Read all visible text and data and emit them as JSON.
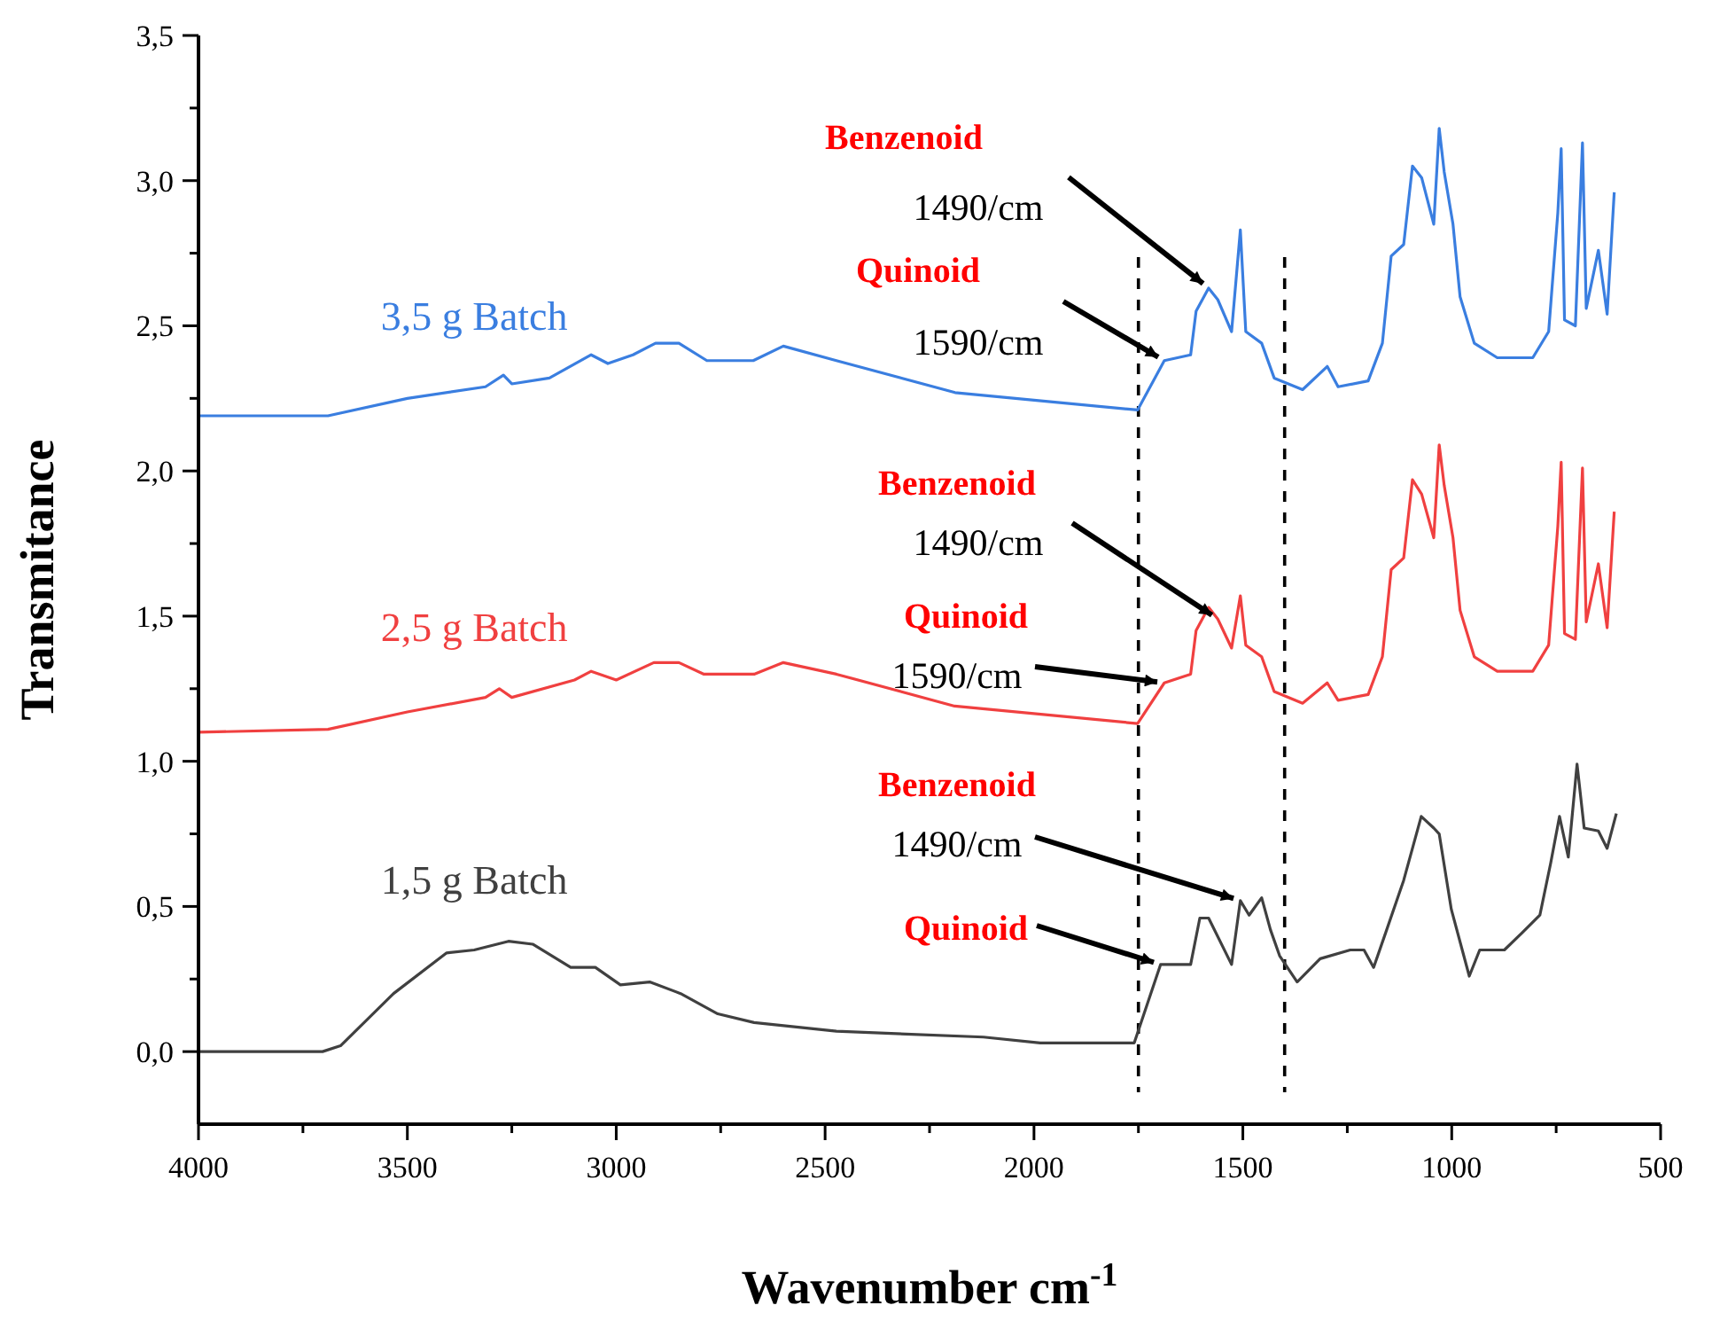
{
  "chart_data": {
    "type": "line",
    "xlabel": "Wavenumber cm$^{-1}$",
    "ylabel": "Transmitance",
    "xlim": [
      4000,
      500
    ],
    "xticks": [
      4000,
      {
        "value": 3750,
        "label": null
      },
      3500,
      {
        "value": 3250,
        "label": null
      },
      3000,
      {
        "value": 2750,
        "label": null
      },
      2500,
      {
        "value": 2250,
        "label": null
      },
      2000,
      {
        "value": 1750,
        "label": null
      },
      1500,
      {
        "value": 1250,
        "label": null
      },
      1000,
      {
        "value": 750,
        "label": null
      },
      500
    ],
    "ylim": [
      -0.25,
      3.5
    ],
    "yticks": [
      {
        "value": 0,
        "label": "0,0"
      },
      {
        "value": 0.25,
        "label": null
      },
      {
        "value": 0.5,
        "label": "0,5"
      },
      {
        "value": 0.75,
        "label": null
      },
      {
        "value": 1,
        "label": "1,0"
      },
      {
        "value": 1.25,
        "label": null
      },
      {
        "value": 1.5,
        "label": "1,5"
      },
      {
        "value": 1.75,
        "label": null
      },
      {
        "value": 2,
        "label": "2,0"
      },
      {
        "value": 2.25,
        "label": null
      },
      {
        "value": 2.5,
        "label": "2,5"
      },
      {
        "value": 2.75,
        "label": null
      },
      {
        "value": 3,
        "label": "3,0"
      },
      {
        "value": 3.25,
        "label": null
      },
      {
        "value": 3.5,
        "label": "3,5"
      }
    ],
    "grid": false,
    "marker": "none",
    "line_style": "solid",
    "series": [
      {
        "name": "3,5 g Batch",
        "color": "#3a7ee0",
        "x": [
          4000,
          3690,
          3500,
          3313,
          3270,
          3250,
          3160,
          3060,
          3020,
          2960,
          2906,
          2850,
          2783,
          2672,
          2600,
          2473,
          2189,
          1752,
          1688,
          1625,
          1612,
          1582,
          1560,
          1527,
          1506,
          1493,
          1455,
          1425,
          1357,
          1298,
          1272,
          1200,
          1166,
          1145,
          1115,
          1094,
          1072,
          1043,
          1030,
          1018,
          997,
          980,
          946,
          891,
          806,
          768,
          746,
          738,
          730,
          704,
          687,
          678,
          649,
          628,
          611
        ],
        "values": [
          2.19,
          2.19,
          2.25,
          2.29,
          2.33,
          2.3,
          2.32,
          2.4,
          2.37,
          2.4,
          2.44,
          2.44,
          2.38,
          2.38,
          2.43,
          2.38,
          2.27,
          2.21,
          2.38,
          2.4,
          2.55,
          2.63,
          2.59,
          2.48,
          2.83,
          2.48,
          2.44,
          2.32,
          2.28,
          2.36,
          2.29,
          2.31,
          2.44,
          2.74,
          2.78,
          3.05,
          3.01,
          2.85,
          3.18,
          3.03,
          2.85,
          2.6,
          2.44,
          2.39,
          2.39,
          2.48,
          2.89,
          3.11,
          2.52,
          2.5,
          3.13,
          2.56,
          2.76,
          2.54,
          2.96
        ]
      },
      {
        "name": "2,5 g Batch",
        "color": "#f04040",
        "x": [
          4000,
          3690,
          3500,
          3313,
          3280,
          3250,
          3100,
          3060,
          3000,
          2910,
          2850,
          2790,
          2670,
          2600,
          2473,
          2190,
          1752,
          1688,
          1625,
          1612,
          1582,
          1560,
          1527,
          1506,
          1493,
          1455,
          1425,
          1357,
          1298,
          1272,
          1200,
          1166,
          1145,
          1115,
          1094,
          1072,
          1043,
          1030,
          1018,
          997,
          980,
          946,
          891,
          806,
          768,
          746,
          738,
          730,
          704,
          687,
          678,
          649,
          628,
          611
        ],
        "values": [
          1.1,
          1.11,
          1.17,
          1.22,
          1.25,
          1.22,
          1.28,
          1.31,
          1.28,
          1.34,
          1.34,
          1.3,
          1.3,
          1.34,
          1.3,
          1.19,
          1.13,
          1.27,
          1.3,
          1.45,
          1.53,
          1.49,
          1.39,
          1.57,
          1.4,
          1.36,
          1.24,
          1.2,
          1.27,
          1.21,
          1.23,
          1.36,
          1.66,
          1.7,
          1.97,
          1.92,
          1.77,
          2.09,
          1.95,
          1.77,
          1.52,
          1.36,
          1.31,
          1.31,
          1.4,
          1.81,
          2.03,
          1.44,
          1.42,
          2.01,
          1.48,
          1.68,
          1.46,
          1.86
        ]
      },
      {
        "name": "1,5 g Batch",
        "color": "#404040",
        "x": [
          4000,
          3703,
          3660,
          3533,
          3406,
          3340,
          3258,
          3200,
          3109,
          3050,
          2990,
          2920,
          2846,
          2757,
          2670,
          2473,
          2121,
          1985,
          1760,
          1697,
          1625,
          1603,
          1582,
          1527,
          1506,
          1485,
          1455,
          1434,
          1412,
          1370,
          1315,
          1243,
          1210,
          1187,
          1158,
          1115,
          1073,
          1043,
          1030,
          1001,
          958,
          933,
          874,
          831,
          789,
          763,
          742,
          721,
          700,
          683,
          649,
          628,
          606
        ],
        "values": [
          0,
          0,
          0.02,
          0.2,
          0.34,
          0.35,
          0.38,
          0.37,
          0.29,
          0.29,
          0.23,
          0.24,
          0.2,
          0.13,
          0.1,
          0.07,
          0.05,
          0.03,
          0.03,
          0.3,
          0.3,
          0.46,
          0.46,
          0.3,
          0.52,
          0.47,
          0.53,
          0.42,
          0.33,
          0.24,
          0.32,
          0.35,
          0.35,
          0.29,
          0.41,
          0.59,
          0.81,
          0.77,
          0.75,
          0.49,
          0.26,
          0.35,
          0.35,
          0.41,
          0.47,
          0.65,
          0.81,
          0.67,
          0.99,
          0.77,
          0.76,
          0.7,
          0.82
        ]
      }
    ],
    "ref_lines": [
      {
        "axis": "x",
        "value": 1750,
        "label": null,
        "color": "#000000",
        "line_style": "dashed"
      },
      {
        "axis": "x",
        "value": 1400,
        "label": null,
        "color": "#000000",
        "line_style": "dashed"
      }
    ],
    "annotations": [
      "Benzenoid",
      {
        "text": "1490/cm",
        "x": 1582,
        "y": 2.63
      },
      "Quinoid",
      {
        "text": "1590/cm",
        "x": 1688,
        "y": 2.38
      },
      "Benzenoid",
      {
        "text": "1490/cm",
        "x": 1560,
        "y": 1.49
      },
      "Quinoid",
      {
        "text": "1590/cm",
        "x": 1688,
        "y": 1.27
      },
      "Benzenoid",
      {
        "text": "1490/cm",
        "x": 1506,
        "y": 0.52
      },
      {
        "text": "Quinoid",
        "x": 1697,
        "y": 0.3
      }
    ]
  }
}
